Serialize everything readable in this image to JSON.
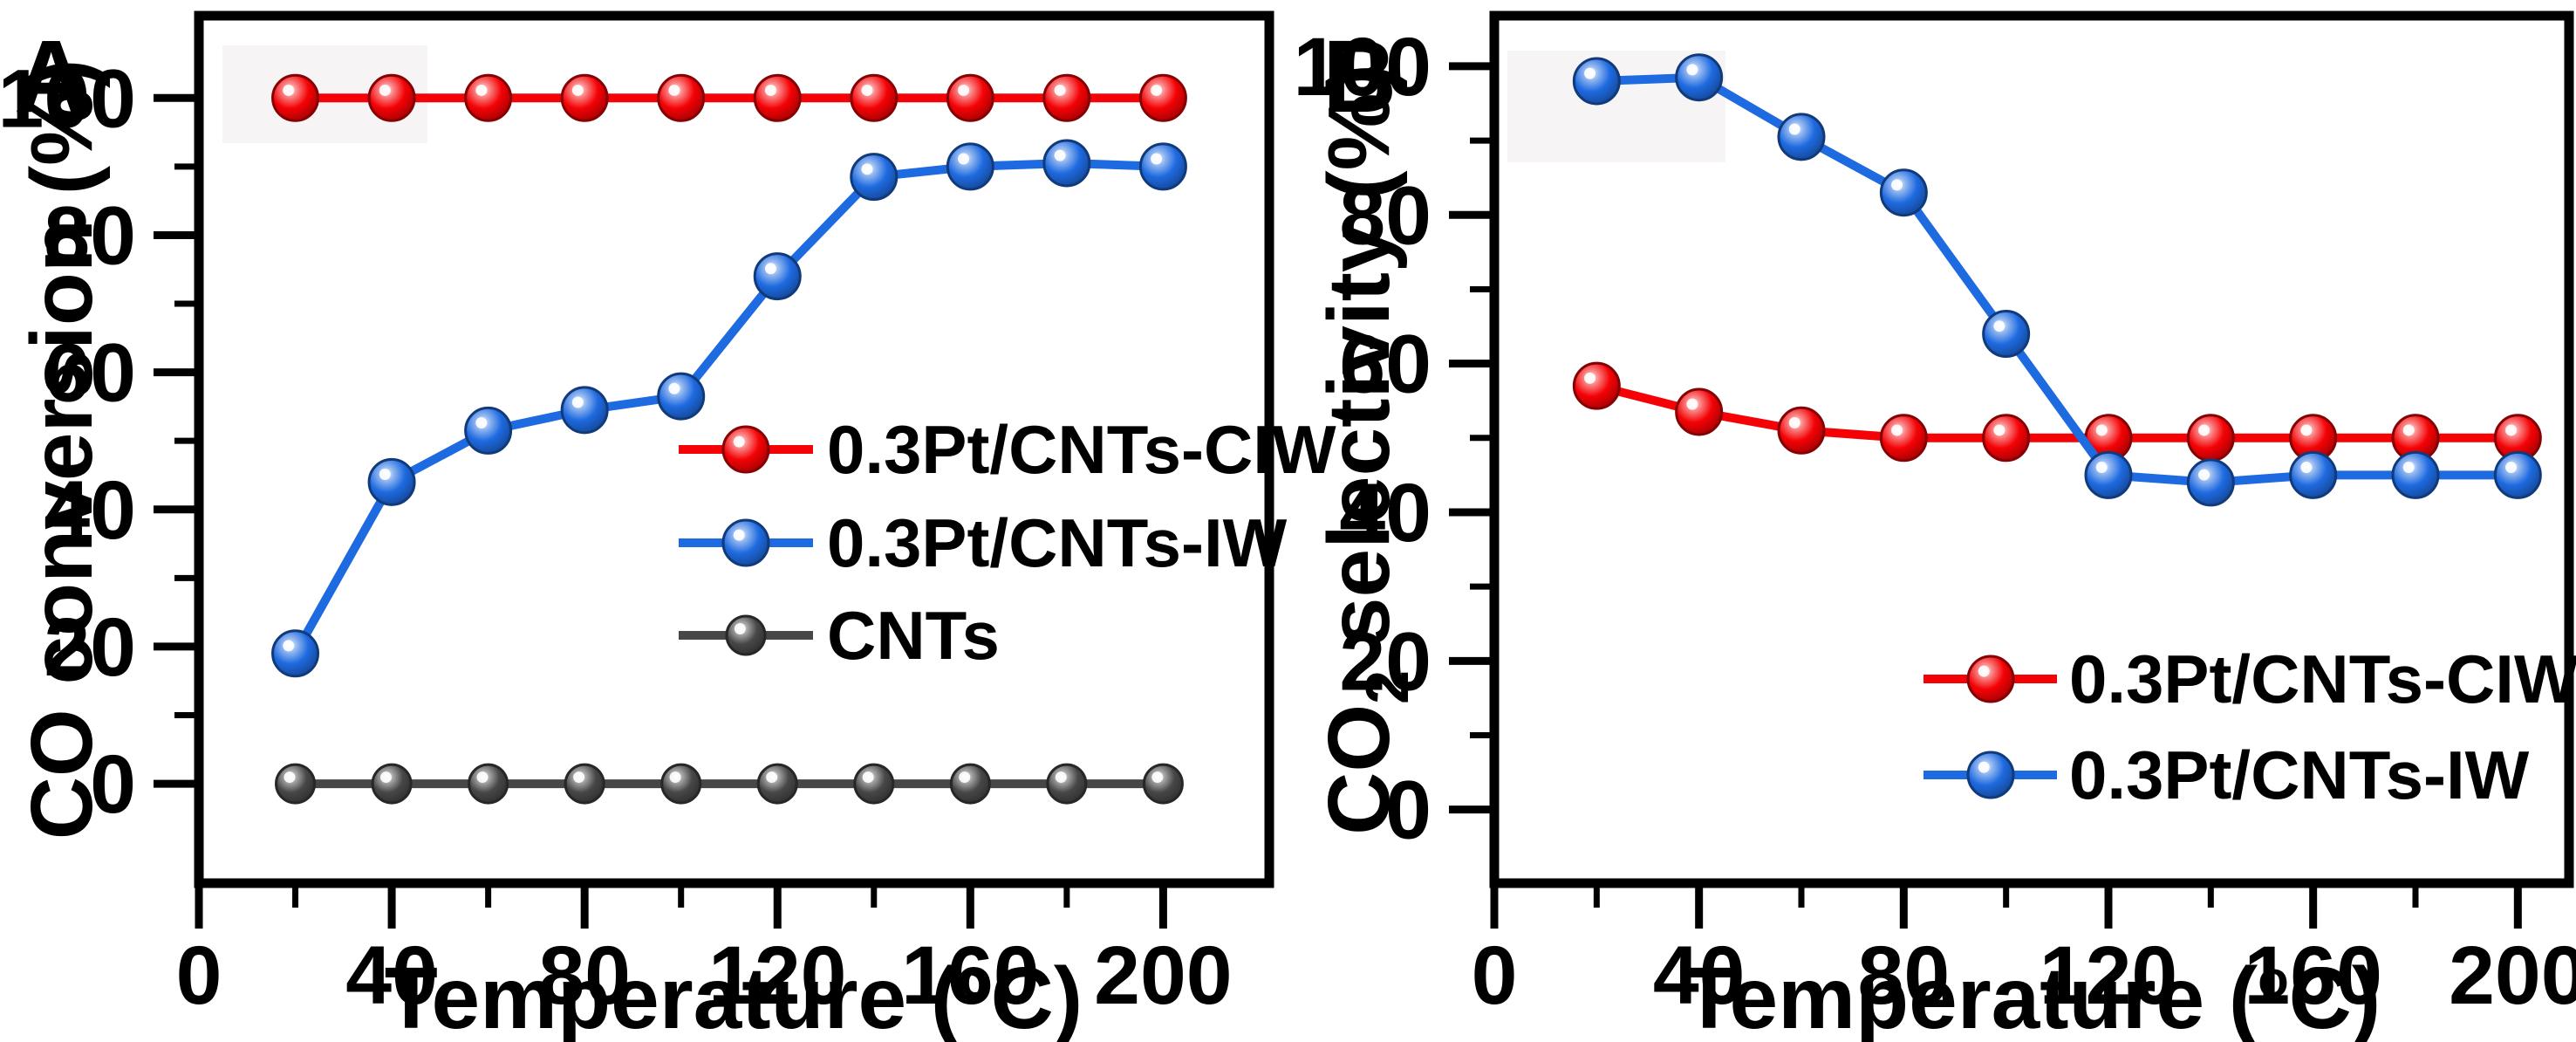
{
  "figure": {
    "panels": [
      {
        "letter": "A",
        "ylabel": {
          "main": "CO conversion (%)",
          "sub": "",
          "end": ""
        },
        "xlabel": {
          "main": "Temperature (",
          "sup": "o",
          "end": "C)"
        }
      },
      {
        "letter": "B",
        "ylabel": {
          "main": "CO",
          "sub": "2",
          "end": " selectivity (%)"
        },
        "xlabel": {
          "main": "Temperature (",
          "sup": "o",
          "end": "C)"
        }
      }
    ]
  },
  "chart_data": [
    {
      "type": "line",
      "panel": "A",
      "title": "",
      "xlabel": "Temperature (°C)",
      "ylabel": "CO conversion (%)",
      "x": [
        20,
        40,
        60,
        80,
        100,
        120,
        140,
        160,
        180,
        200
      ],
      "series": [
        {
          "name": "0.3Pt/CNTs-CIW",
          "color": "#f40205",
          "values": [
            100,
            100,
            100,
            100,
            100,
            100,
            100,
            100,
            100,
            100
          ]
        },
        {
          "name": "0.3Pt/CNTs-IW",
          "color": "#1e6ae0",
          "values": [
            19,
            44,
            51.5,
            54.5,
            56.5,
            74,
            88.5,
            90,
            90.5,
            90
          ]
        },
        {
          "name": "CNTs",
          "color": "#474747",
          "values": [
            0,
            0,
            0,
            0,
            0,
            0,
            0,
            0,
            0,
            0
          ]
        }
      ],
      "xlim": [
        0,
        222
      ],
      "ylim": [
        -14.5,
        112
      ],
      "xticks": [
        0,
        40,
        80,
        120,
        160,
        200
      ],
      "xticks_minor": [
        20,
        60,
        100,
        140,
        180
      ],
      "yticks": [
        0,
        20,
        40,
        60,
        80,
        100
      ],
      "yticks_minor": [
        10,
        30,
        50,
        70,
        90
      ],
      "grid": false,
      "legend_position": "center-right",
      "marker": "sphere"
    },
    {
      "type": "line",
      "panel": "B",
      "title": "",
      "xlabel": "Temperature (°C)",
      "ylabel": "CO2 selectivity (%)",
      "x": [
        20,
        40,
        60,
        80,
        100,
        120,
        140,
        160,
        180,
        200
      ],
      "series": [
        {
          "name": "0.3Pt/CNTs-CIW",
          "color": "#f40205",
          "values": [
            57,
            53.5,
            51,
            50,
            50,
            50,
            50,
            50,
            50,
            50
          ]
        },
        {
          "name": "0.3Pt/CNTs-IW",
          "color": "#1e6ae0",
          "values": [
            98,
            98.5,
            90.5,
            83,
            64,
            45,
            44,
            45,
            45,
            45
          ]
        }
      ],
      "xlim": [
        0,
        210
      ],
      "ylim": [
        -9.9,
        106.8
      ],
      "xticks": [
        0,
        40,
        80,
        120,
        160,
        200
      ],
      "xticks_minor": [
        20,
        60,
        100,
        140,
        180
      ],
      "yticks": [
        0,
        20,
        40,
        60,
        80,
        100
      ],
      "yticks_minor": [
        10,
        30,
        50,
        70,
        90
      ],
      "grid": false,
      "legend_position": "bottom-right",
      "marker": "sphere"
    }
  ]
}
